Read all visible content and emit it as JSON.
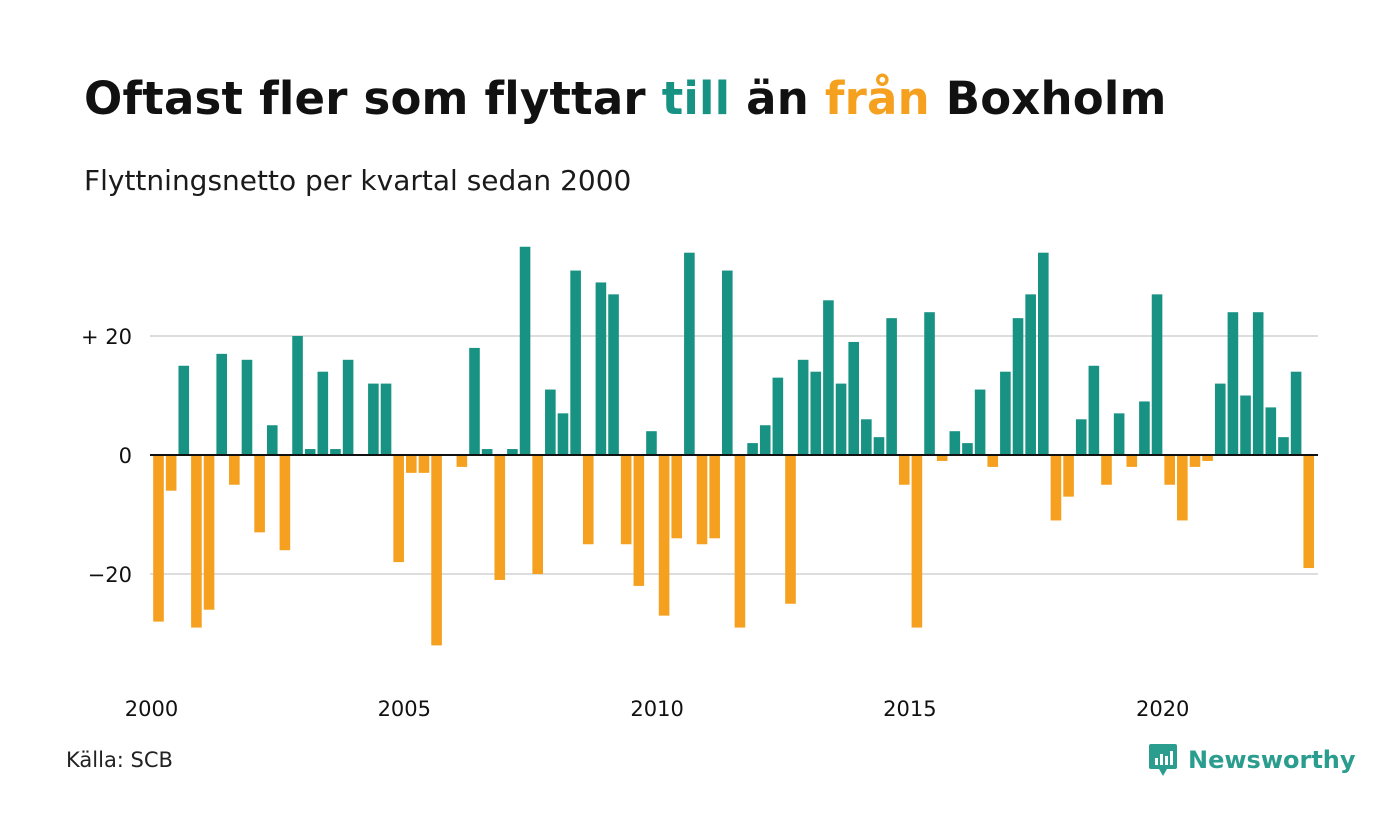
{
  "header": {
    "title_part1": "Oftast fler som flyttar ",
    "title_till": "till",
    "title_part2": " än ",
    "title_fran": "från",
    "title_part3": " Boxholm",
    "subtitle": "Flyttningsnetto per kvartal sedan 2000"
  },
  "footer": {
    "source": "Källa: SCB",
    "brand": "Newsworthy",
    "brand_icon": "newsworthy-logo-icon"
  },
  "colors": {
    "positive": "#179283",
    "negative": "#f5a01e",
    "grid": "#dddddd",
    "text": "#111111",
    "brand": "#2a9d8f"
  },
  "chart_data": {
    "type": "bar",
    "title": "Oftast fler som flyttar till än från Boxholm",
    "subtitle": "Flyttningsnetto per kvartal sedan 2000",
    "x_start": {
      "year": 2000,
      "quarter": 1
    },
    "x_ticks": [
      "2000",
      "2005",
      "2010",
      "2015",
      "2020"
    ],
    "y_ticks": [
      {
        "value": 20,
        "label": "+ 20"
      },
      {
        "value": 0,
        "label": "0"
      },
      {
        "value": -20,
        "label": "−20"
      }
    ],
    "ylim": [
      -36,
      36
    ],
    "grid": true,
    "values": [
      -28,
      -6,
      15,
      -29,
      -26,
      17,
      -5,
      16,
      -13,
      5,
      -16,
      20,
      1,
      14,
      1,
      16,
      0,
      12,
      12,
      -18,
      -3,
      -3,
      -32,
      0,
      -2,
      18,
      1,
      -21,
      1,
      35,
      -20,
      11,
      7,
      31,
      -15,
      29,
      27,
      -15,
      -22,
      4,
      -27,
      -14,
      34,
      -15,
      -14,
      31,
      -29,
      2,
      5,
      13,
      -25,
      16,
      14,
      26,
      12,
      19,
      6,
      3,
      23,
      -5,
      -29,
      24,
      -1,
      4,
      2,
      11,
      -2,
      14,
      23,
      27,
      34,
      -11,
      -7,
      6,
      15,
      -5,
      7,
      -2,
      9,
      27,
      -5,
      -11,
      -2,
      -1,
      12,
      24,
      10,
      24,
      8,
      3,
      14,
      -19
    ]
  }
}
